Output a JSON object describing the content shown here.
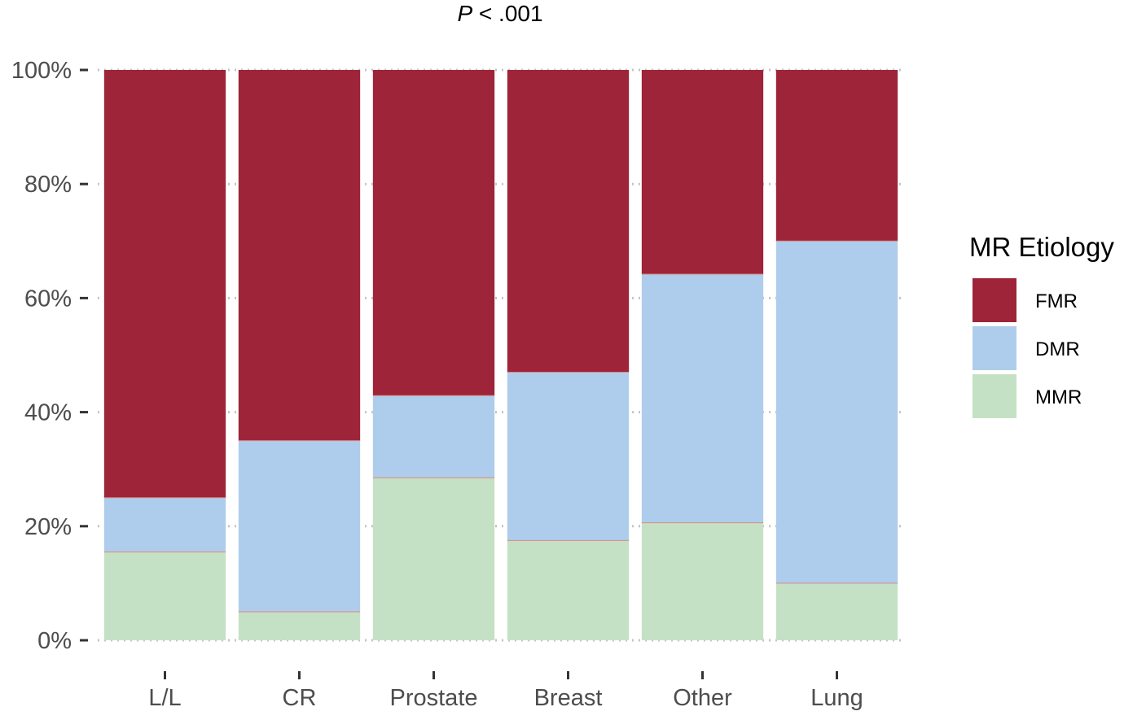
{
  "chart_data": {
    "type": "bar",
    "stacked": true,
    "normalized": true,
    "title_prefix": "P",
    "title_suffix": " < .001",
    "xlabel": "",
    "ylabel": "",
    "categories": [
      "L/L",
      "CR",
      "Prostate",
      "Breast",
      "Other",
      "Lung"
    ],
    "series": [
      {
        "name": "MMR",
        "color": "#c5e1c5",
        "values": [
          15.5,
          5.0,
          28.5,
          17.5,
          20.6,
          10.0
        ]
      },
      {
        "name": "DMR",
        "color": "#aecdec",
        "values": [
          9.5,
          30.0,
          14.4,
          29.5,
          43.6,
          60.0
        ]
      },
      {
        "name": "FMR",
        "color": "#9e2439",
        "values": [
          75.0,
          65.0,
          57.1,
          53.0,
          35.8,
          30.0
        ]
      }
    ],
    "ylim": [
      0,
      100
    ],
    "yticks": [
      0,
      20,
      40,
      60,
      80,
      100
    ],
    "ytick_labels": [
      "0%",
      "20%",
      "40%",
      "60%",
      "80%",
      "100%"
    ],
    "grid": true,
    "legend": {
      "title": "MR Etiology",
      "position": "right",
      "order": [
        "FMR",
        "DMR",
        "MMR"
      ]
    }
  }
}
